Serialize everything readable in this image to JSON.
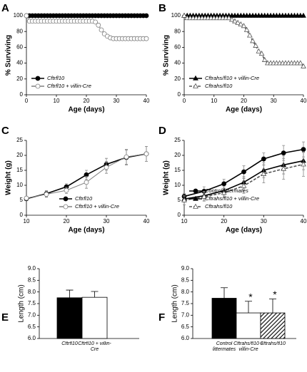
{
  "chart_data": [
    {
      "type": "line",
      "panel": "A",
      "xlabel": "Age (days)",
      "ylabel": "% Surviving",
      "legend": "lower left",
      "x": [
        0,
        1,
        2,
        3,
        4,
        5,
        6,
        7,
        8,
        9,
        10,
        11,
        12,
        13,
        14,
        15,
        16,
        17,
        18,
        19,
        20,
        21,
        22,
        23,
        24,
        25,
        26,
        27,
        28,
        29,
        30,
        31,
        32,
        33,
        34,
        35,
        36,
        37,
        38,
        39,
        40
      ],
      "xlim": [
        0,
        40
      ],
      "xticks": [
        0,
        10,
        20,
        30,
        40
      ],
      "ylim": [
        0,
        100
      ],
      "yticks": [
        0,
        20,
        40,
        60,
        80,
        100
      ],
      "series": [
        {
          "name": "Cftrfl10",
          "color": "#000000",
          "marker": "circle",
          "dashed": false,
          "values": [
            100,
            100,
            100,
            100,
            100,
            100,
            100,
            100,
            100,
            100,
            100,
            100,
            100,
            100,
            100,
            100,
            100,
            100,
            100,
            100,
            100,
            100,
            100,
            100,
            100,
            100,
            100,
            100,
            100,
            100,
            100,
            100,
            100,
            100,
            100,
            100,
            100,
            100,
            100,
            100,
            100
          ]
        },
        {
          "name": "Cftrfl10 + villin-Cre",
          "color": "#808080",
          "marker": "circle-open",
          "dashed": false,
          "values": [
            100,
            93,
            93,
            93,
            93,
            93,
            93,
            93,
            93,
            93,
            93,
            93,
            93,
            93,
            93,
            93,
            93,
            93,
            93,
            93,
            93,
            93,
            93,
            92,
            88,
            82,
            77,
            74,
            72,
            71,
            71,
            71,
            71,
            71,
            71,
            71,
            71,
            71,
            71,
            71,
            71
          ]
        }
      ]
    },
    {
      "type": "line",
      "panel": "B",
      "xlabel": "Age (days)",
      "ylabel": "% Surviving",
      "legend": "lower left",
      "x": [
        0,
        1,
        2,
        3,
        4,
        5,
        6,
        7,
        8,
        9,
        10,
        11,
        12,
        13,
        14,
        15,
        16,
        17,
        18,
        19,
        20,
        21,
        22,
        23,
        24,
        25,
        26,
        27,
        28,
        29,
        30,
        31,
        32,
        33,
        34,
        35,
        36,
        37,
        38,
        39,
        40
      ],
      "xlim": [
        0,
        40
      ],
      "xticks": [
        0,
        10,
        20,
        30,
        40
      ],
      "ylim": [
        0,
        100
      ],
      "yticks": [
        0,
        20,
        40,
        60,
        80,
        100
      ],
      "series": [
        {
          "name": "Cftrahs/fl10 + villin-Cre",
          "color": "#000000",
          "marker": "triangle",
          "dashed": false,
          "values": [
            100,
            100,
            100,
            100,
            100,
            100,
            100,
            100,
            100,
            100,
            100,
            100,
            100,
            100,
            100,
            100,
            100,
            100,
            100,
            100,
            100,
            100,
            100,
            100,
            100,
            100,
            100,
            100,
            100,
            100,
            100,
            100,
            100,
            100,
            100,
            100,
            100,
            100,
            100,
            100,
            100
          ]
        },
        {
          "name": "Cftrahs/fl10",
          "color": "#555555",
          "marker": "triangle-open",
          "dashed": true,
          "values": [
            100,
            97,
            97,
            97,
            97,
            97,
            97,
            97,
            97,
            97,
            97,
            97,
            97,
            97,
            97,
            97,
            95,
            93,
            91,
            89,
            87,
            82,
            75,
            68,
            62,
            55,
            52,
            44,
            40,
            40,
            40,
            40,
            40,
            40,
            40,
            40,
            40,
            40,
            40,
            40,
            36
          ]
        }
      ]
    },
    {
      "type": "line",
      "panel": "C",
      "xlabel": "Age (days)",
      "ylabel": "Weight (g)",
      "legend": "lower right",
      "x": [
        10,
        15,
        20,
        25,
        30,
        35,
        40
      ],
      "xlim": [
        10,
        40
      ],
      "xticks": [
        10,
        20,
        30,
        40
      ],
      "ylim": [
        0,
        25
      ],
      "yticks": [
        0,
        5,
        10,
        15,
        20,
        25
      ],
      "series": [
        {
          "name": "Cftrfl10",
          "color": "#000000",
          "marker": "circle",
          "dashed": false,
          "values": [
            5.5,
            7.2,
            9.5,
            13.5,
            17,
            19.3,
            20.5
          ],
          "errors": [
            0.5,
            1,
            1,
            1.5,
            2,
            2.5,
            2.5
          ]
        },
        {
          "name": "Cftrfl10 + villin-Cre",
          "color": "#808080",
          "marker": "circle-open",
          "dashed": false,
          "values": [
            5.7,
            7,
            8.3,
            11,
            16,
            19.5,
            20.5
          ],
          "errors": [
            0.5,
            1,
            1,
            2,
            2,
            2.5,
            2.5
          ]
        }
      ]
    },
    {
      "type": "line",
      "panel": "D",
      "xlabel": "Age (days)",
      "ylabel": "Weight (g)",
      "legend": "lower left",
      "x": [
        10,
        15,
        20,
        25,
        30,
        35,
        40
      ],
      "xlim": [
        10,
        40
      ],
      "xticks": [
        10,
        20,
        30,
        40
      ],
      "ylim": [
        0,
        25
      ],
      "yticks": [
        0,
        5,
        10,
        15,
        20,
        25
      ],
      "series": [
        {
          "name": "Control littermates",
          "color": "#000000",
          "marker": "circle",
          "dashed": false,
          "values": [
            6.3,
            8,
            10.5,
            14.5,
            18.8,
            20.8,
            22
          ],
          "errors": [
            1,
            1.5,
            1.5,
            2,
            2,
            2.5,
            2.5
          ]
        },
        {
          "name": "Cftrahs/fl10 + villin-Cre",
          "color": "#000000",
          "marker": "triangle",
          "dashed": false,
          "values": [
            5.4,
            6.5,
            8.2,
            11,
            15,
            16.8,
            18.2
          ],
          "errors": [
            1,
            1.5,
            1.5,
            2,
            2.5,
            3,
            3
          ]
        },
        {
          "name": "Cftrahs/fl10",
          "color": "#555555",
          "marker": "triangle-open",
          "dashed": true,
          "values": [
            5,
            6.2,
            7.5,
            9.8,
            13.8,
            15.5,
            17
          ],
          "errors": [
            1.5,
            1.5,
            1.5,
            2.5,
            3,
            3.5,
            4
          ]
        }
      ]
    },
    {
      "type": "bar",
      "panel": "E",
      "ylabel": "Length (cm)",
      "categories": [
        "Cftrfl10",
        "Cftrfl10 + villin-Cre"
      ],
      "values": [
        7.75,
        7.77
      ],
      "errors": [
        0.33,
        0.25
      ],
      "colors": [
        "#000000",
        "#ffffff"
      ],
      "patterns": [
        "solid",
        "solid"
      ],
      "ylim": [
        6,
        9
      ],
      "yticks": [
        {
          "value": 6,
          "label": "6.0"
        },
        6.5,
        {
          "value": 7,
          "label": "7.0"
        },
        7.5,
        {
          "value": 8,
          "label": "8.0"
        },
        8.5,
        {
          "value": 9,
          "label": "9.0"
        }
      ]
    },
    {
      "type": "bar",
      "panel": "F",
      "ylabel": "Length (cm)",
      "categories": [
        "Control littermates",
        "Cftrahs/fl10 + villin-Cre",
        "Cftrahs/fl10"
      ],
      "values": [
        7.73,
        7.1,
        7.1
      ],
      "errors": [
        0.45,
        0.5,
        0.6
      ],
      "colors": [
        "#000000",
        "#ffffff",
        "#000000"
      ],
      "patterns": [
        "solid",
        "solid",
        "hatch"
      ],
      "annotations": [
        null,
        "*",
        "*"
      ],
      "ylim": [
        6,
        9
      ],
      "yticks": [
        {
          "value": 6,
          "label": "6.0"
        },
        6.5,
        {
          "value": 7,
          "label": "7.0"
        },
        7.5,
        {
          "value": 8,
          "label": "8.0"
        },
        8.5,
        {
          "value": 9,
          "label": "9.0"
        }
      ]
    }
  ]
}
